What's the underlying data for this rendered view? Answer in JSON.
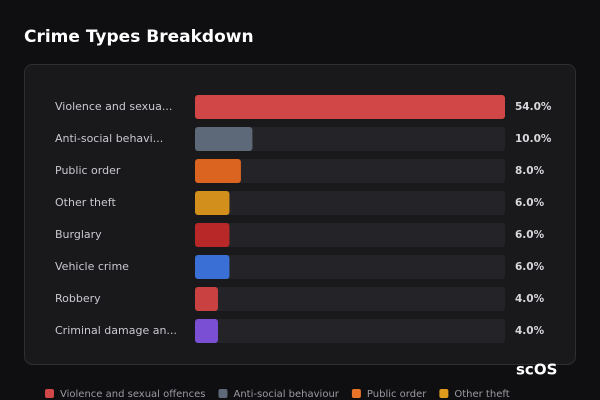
{
  "chart_data": {
    "type": "hbar",
    "title": "Crime Types Breakdown",
    "categories": [
      "Violence and sexua...",
      "Anti-social behavi...",
      "Public order",
      "Other theft",
      "Burglary",
      "Vehicle crime",
      "Robbery",
      "Criminal damage an..."
    ],
    "values": [
      54,
      10,
      8,
      6,
      6,
      6,
      4,
      4
    ],
    "value_labels": [
      "54.0%",
      "10.0%",
      "8.0%",
      "6.0%",
      "6.0%",
      "6.0%",
      "4.0%",
      "4.0%"
    ],
    "colors": [
      "#d14646",
      "#5d6878",
      "#db6420",
      "#d38f1b",
      "#b82828",
      "#3a70d6",
      "#c94141",
      "#7a4fd4"
    ],
    "xlim": [
      0,
      54
    ],
    "legend": [
      {
        "name": "Violence and sexual offences",
        "color": "#d14646"
      },
      {
        "name": "Anti-social behaviour",
        "color": "#5d6878"
      },
      {
        "name": "Public order",
        "color": "#e8742a"
      },
      {
        "name": "Other theft",
        "color": "#e09a1c"
      }
    ],
    "watermark": "scOS"
  }
}
